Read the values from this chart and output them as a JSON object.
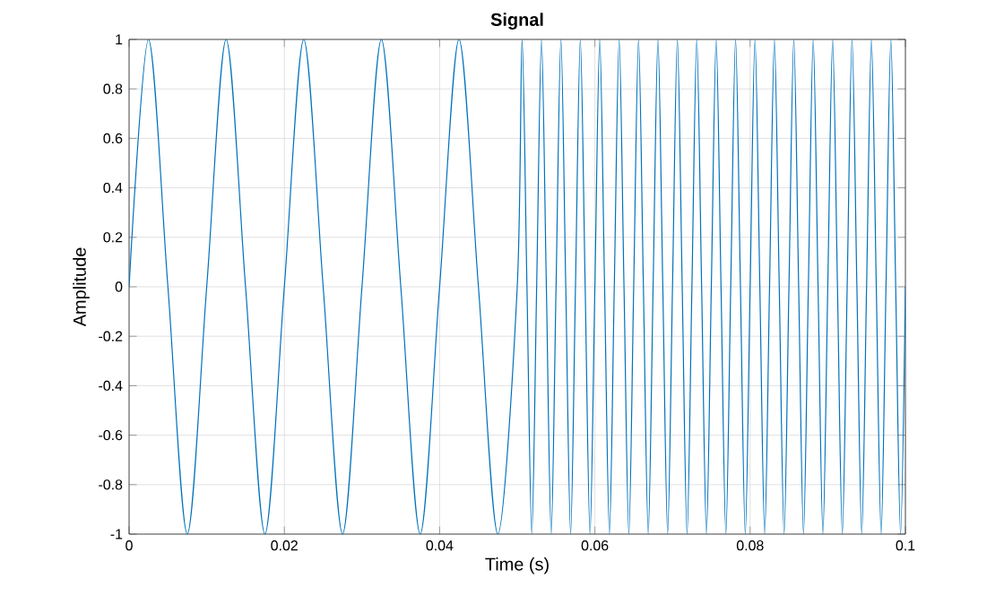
{
  "chart_data": {
    "type": "line",
    "title": "Signal",
    "xlabel": "Time (s)",
    "ylabel": "Amplitude",
    "xlim": [
      0,
      0.1
    ],
    "ylim": [
      -1,
      1
    ],
    "xticks": [
      0,
      0.02,
      0.04,
      0.06,
      0.08,
      0.1
    ],
    "yticks": [
      -1,
      -0.8,
      -0.6,
      -0.4,
      -0.2,
      0,
      0.2,
      0.4,
      0.6,
      0.8,
      1
    ],
    "grid": true,
    "marker": "none",
    "line_style": "solid",
    "series": [
      {
        "color": "#0072bd",
        "x": [
          0,
          0.0025,
          0.005,
          0.0075,
          0.01,
          0.0125,
          0.015,
          0.0175,
          0.02,
          0.0225,
          0.025,
          0.0275,
          0.03,
          0.0325,
          0.035,
          0.0375,
          0.04,
          0.0425,
          0.045,
          0.0475,
          0.05,
          0.050625,
          0.05125,
          0.051875,
          0.0525,
          0.053125,
          0.05375,
          0.054375,
          0.055,
          0.055625,
          0.05625,
          0.056875,
          0.0575,
          0.058125,
          0.05875,
          0.059375,
          0.06,
          0.060625,
          0.06125,
          0.061875,
          0.0625,
          0.063125,
          0.06375,
          0.064375,
          0.065,
          0.065625,
          0.06625,
          0.066875,
          0.0675,
          0.068125,
          0.06875,
          0.069375,
          0.07,
          0.070625,
          0.07125,
          0.071875,
          0.0725,
          0.073125,
          0.07375,
          0.074375,
          0.075,
          0.075625,
          0.07625,
          0.076875,
          0.0775,
          0.078125,
          0.07875,
          0.079375,
          0.08,
          0.080625,
          0.08125,
          0.081875,
          0.0825,
          0.083125,
          0.08375,
          0.084375,
          0.085,
          0.085625,
          0.08625,
          0.086875,
          0.0875,
          0.088125,
          0.08875,
          0.089375,
          0.09,
          0.090625,
          0.09125,
          0.091875,
          0.0925,
          0.093125,
          0.09375,
          0.094375,
          0.095,
          0.095625,
          0.09625,
          0.096875,
          0.0975,
          0.098125,
          0.09875,
          0.099375,
          0.1
        ],
        "values": [
          0,
          1,
          0,
          -1,
          0,
          1,
          0,
          -1,
          0,
          1,
          0,
          -1,
          0,
          1,
          0,
          -1,
          0,
          1,
          0,
          -1,
          0,
          1,
          0,
          -1,
          0,
          1,
          0,
          -1,
          0,
          1,
          0,
          -1,
          0,
          1,
          0,
          -1,
          0,
          1,
          0,
          -1,
          0,
          1,
          0,
          -1,
          0,
          1,
          0,
          -1,
          0,
          1,
          0,
          -1,
          0,
          1,
          0,
          -1,
          0,
          1,
          0,
          -1,
          0,
          1,
          0,
          -1,
          0,
          1,
          0,
          -1,
          0,
          1,
          0,
          -1,
          0,
          1,
          0,
          -1,
          0,
          1,
          0,
          -1,
          0,
          1,
          0,
          -1,
          0,
          1,
          0,
          -1,
          0,
          1,
          0,
          -1,
          0,
          1,
          0,
          -1,
          0,
          1,
          0,
          -1,
          0
        ]
      }
    ]
  }
}
